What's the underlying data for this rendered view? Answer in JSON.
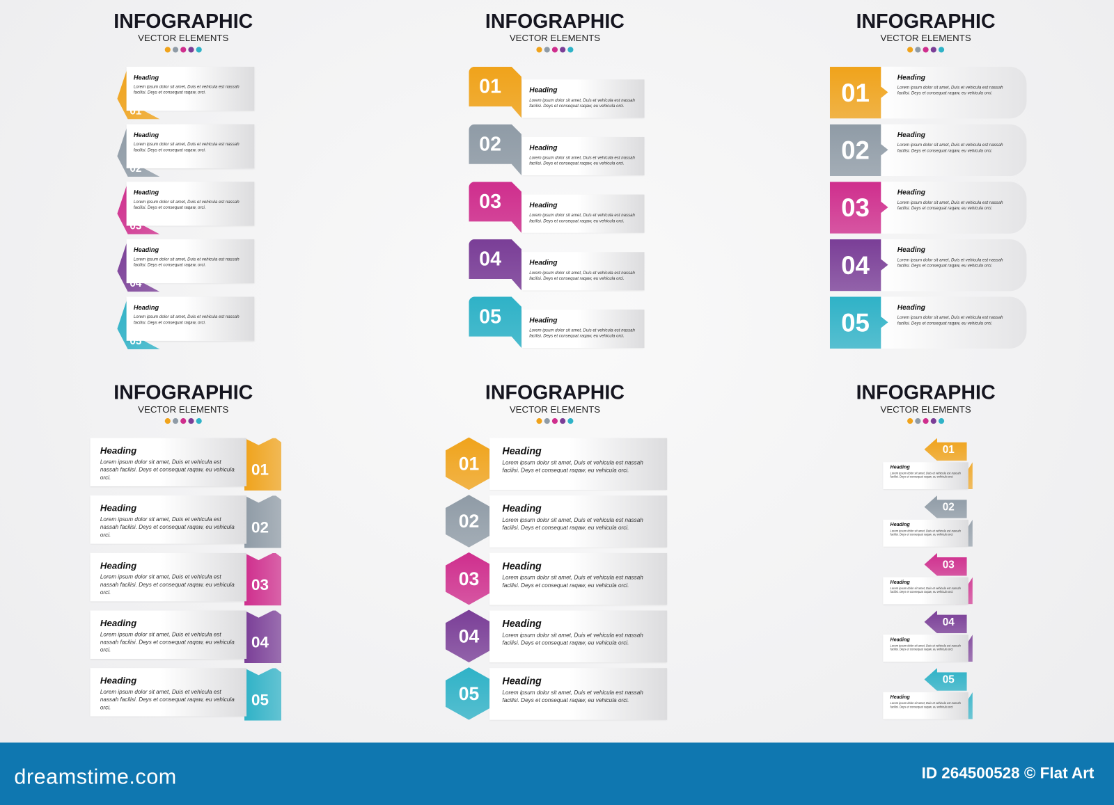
{
  "colors": [
    "#f0a31b",
    "#8f9ba6",
    "#cf2e8d",
    "#7a3e97",
    "#2fb2c7"
  ],
  "panels": [
    {
      "title": "INFOGRAPHIC",
      "subtitle": "VECTOR ELEMENTS",
      "style": "ribbon-left",
      "items": [
        {
          "number": "01",
          "heading": "Heading",
          "text": "Lorem ipsum dolor sit amet, Duis et vehicula est nassah facilisi. Deys et consequat raqaw, orci."
        },
        {
          "number": "02",
          "heading": "Heading",
          "text": "Lorem ipsum dolor sit amet, Duis et vehicula est nassah facilisi. Deys et consequat raqaw, orci."
        },
        {
          "number": "03",
          "heading": "Heading",
          "text": "Lorem ipsum dolor sit amet, Duis et vehicula est nassah facilisi. Deys et consequat raqaw, orci."
        },
        {
          "number": "04",
          "heading": "Heading",
          "text": "Lorem ipsum dolor sit amet, Duis et vehicula est nassah facilisi. Deys et consequat raqaw, orci."
        },
        {
          "number": "05",
          "heading": "Heading",
          "text": "Lorem ipsum dolor sit amet, Duis et vehicula est nassah facilisi. Deys et consequat raqaw, orci."
        }
      ]
    },
    {
      "title": "INFOGRAPHIC",
      "subtitle": "VECTOR ELEMENTS",
      "style": "speech-box",
      "items": [
        {
          "number": "01",
          "heading": "Heading",
          "text": "Lorem ipsum dolor sit amet, Duis et vehicula est nassah facilisi. Deys et consequat raqaw, eu vehicula orci."
        },
        {
          "number": "02",
          "heading": "Heading",
          "text": "Lorem ipsum dolor sit amet, Duis et vehicula est nassah facilisi. Deys et consequat raqaw, eu vehicula orci."
        },
        {
          "number": "03",
          "heading": "Heading",
          "text": "Lorem ipsum dolor sit amet, Duis et vehicula est nassah facilisi. Deys et consequat raqaw, eu vehicula orci."
        },
        {
          "number": "04",
          "heading": "Heading",
          "text": "Lorem ipsum dolor sit amet, Duis et vehicula est nassah facilisi. Deys et consequat raqaw, eu vehicula orci."
        },
        {
          "number": "05",
          "heading": "Heading",
          "text": "Lorem ipsum dolor sit amet, Duis et vehicula est nassah facilisi. Deys et consequat raqaw, eu vehicula orci."
        }
      ]
    },
    {
      "title": "INFOGRAPHIC",
      "subtitle": "VECTOR ELEMENTS",
      "style": "square-arrow",
      "items": [
        {
          "number": "01",
          "heading": "Heading",
          "text": "Lorem ipsum dolor sit amet, Duis et vehicula est nassah facilisi. Deys et consequat raqaw, eu vehicula orci."
        },
        {
          "number": "02",
          "heading": "Heading",
          "text": "Lorem ipsum dolor sit amet, Duis et vehicula est nassah facilisi. Deys et consequat raqaw, eu vehicula orci."
        },
        {
          "number": "03",
          "heading": "Heading",
          "text": "Lorem ipsum dolor sit amet, Duis et vehicula est nassah facilisi. Deys et consequat raqaw, eu vehicula orci."
        },
        {
          "number": "04",
          "heading": "Heading",
          "text": "Lorem ipsum dolor sit amet, Duis et vehicula est nassah facilisi. Deys et consequat raqaw, eu vehicula orci."
        },
        {
          "number": "05",
          "heading": "Heading",
          "text": "Lorem ipsum dolor sit amet, Duis et vehicula est nassah facilisi. Deys et consequat raqaw, eu vehicula orci."
        }
      ]
    },
    {
      "title": "INFOGRAPHIC",
      "subtitle": "VECTOR ELEMENTS",
      "style": "bookmark-right",
      "items": [
        {
          "number": "01",
          "heading": "Heading",
          "text": "Lorem ipsum dolor sit amet, Duis et vehicula est nassah facilisi. Deys et consequat raqaw, eu vehicula orci."
        },
        {
          "number": "02",
          "heading": "Heading",
          "text": "Lorem ipsum dolor sit amet, Duis et vehicula est nassah facilisi. Deys et consequat raqaw, eu vehicula orci."
        },
        {
          "number": "03",
          "heading": "Heading",
          "text": "Lorem ipsum dolor sit amet, Duis et vehicula est nassah facilisi. Deys et consequat raqaw, eu vehicula orci."
        },
        {
          "number": "04",
          "heading": "Heading",
          "text": "Lorem ipsum dolor sit amet, Duis et vehicula est nassah facilisi. Deys et consequat raqaw, eu vehicula orci."
        },
        {
          "number": "05",
          "heading": "Heading",
          "text": "Lorem ipsum dolor sit amet, Duis et vehicula est nassah facilisi. Deys et consequat raqaw, eu vehicula orci."
        }
      ]
    },
    {
      "title": "INFOGRAPHIC",
      "subtitle": "VECTOR ELEMENTS",
      "style": "hexagon",
      "items": [
        {
          "number": "01",
          "heading": "Heading",
          "text": "Lorem ipsum dolor sit amet, Duis et vehicula est nassah facilisi. Deys et consequat raqaw, eu vehicula orci."
        },
        {
          "number": "02",
          "heading": "Heading",
          "text": "Lorem ipsum dolor sit amet, Duis et vehicula est nassah facilisi. Deys et consequat raqaw, eu vehicula orci."
        },
        {
          "number": "03",
          "heading": "Heading",
          "text": "Lorem ipsum dolor sit amet, Duis et vehicula est nassah facilisi. Deys et consequat raqaw, eu vehicula orci."
        },
        {
          "number": "04",
          "heading": "Heading",
          "text": "Lorem ipsum dolor sit amet, Duis et vehicula est nassah facilisi. Deys et consequat raqaw, eu vehicula orci."
        },
        {
          "number": "05",
          "heading": "Heading",
          "text": "Lorem ipsum dolor sit amet, Duis et vehicula est nassah facilisi. Deys et consequat raqaw, eu vehicula orci."
        }
      ]
    },
    {
      "title": "INFOGRAPHIC",
      "subtitle": "VECTOR ELEMENTS",
      "style": "arrow-left",
      "items": [
        {
          "number": "01",
          "heading": "Heading",
          "text": "Lorem ipsum dolor sit amet, Duis et vehicula est nassah facilisi. Deys et consequat raqaw, eu vehicula orci."
        },
        {
          "number": "02",
          "heading": "Heading",
          "text": "Lorem ipsum dolor sit amet, Duis et vehicula est nassah facilisi. Deys et consequat raqaw, eu vehicula orci."
        },
        {
          "number": "03",
          "heading": "Heading",
          "text": "Lorem ipsum dolor sit amet, Duis et vehicula est nassah facilisi. Deys et consequat raqaw, eu vehicula orci."
        },
        {
          "number": "04",
          "heading": "Heading",
          "text": "Lorem ipsum dolor sit amet, Duis et vehicula est nassah facilisi. Deys et consequat raqaw, eu vehicula orci."
        },
        {
          "number": "05",
          "heading": "Heading",
          "text": "Lorem ipsum dolor sit amet, Duis et vehicula est nassah facilisi. Deys et consequat raqaw, eu vehicula orci."
        }
      ]
    }
  ],
  "footer": {
    "logo": "dreamstime.com",
    "credit": "ID 264500528 © Flat Art"
  }
}
